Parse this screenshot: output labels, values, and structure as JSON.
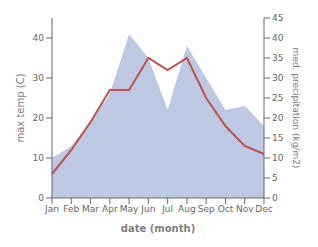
{
  "chart_data": {
    "type": "line",
    "categories": [
      "Jan",
      "Feb",
      "Mar",
      "Apr",
      "May",
      "Jun",
      "Jul",
      "Aug",
      "Sep",
      "Oct",
      "Nov",
      "Dec"
    ],
    "xlabel": "date (month)",
    "ylabel": "max temp (C)",
    "y2label": "med. precipitation (kg/m2)",
    "ylim": [
      0,
      45
    ],
    "yticks": [
      0,
      10,
      20,
      30,
      40
    ],
    "y2lim": [
      0,
      45
    ],
    "y2ticks": [
      0,
      5,
      10,
      15,
      20,
      25,
      30,
      35,
      40,
      45
    ],
    "grid": false,
    "series": [
      {
        "type": "area",
        "axis": "y2",
        "color": "#bdc9e3",
        "values": [
          10,
          13,
          19,
          26,
          41,
          35,
          22,
          38,
          30,
          22,
          23,
          18
        ]
      },
      {
        "type": "line",
        "axis": "y",
        "color": "#c0504d",
        "values": [
          6,
          12,
          19,
          27,
          27,
          35,
          32,
          35,
          25,
          18,
          13,
          11
        ]
      }
    ]
  }
}
